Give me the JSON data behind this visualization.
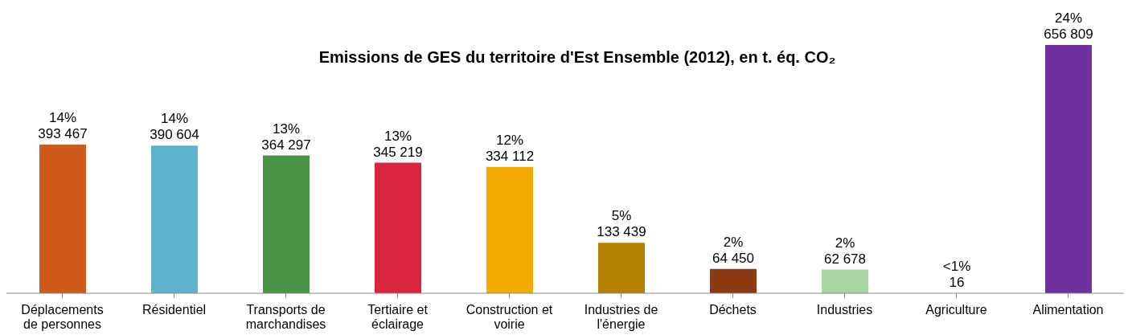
{
  "chart_data": {
    "type": "bar",
    "title": "Emissions de GES du territoire d'Est Ensemble (2012), en t. éq. CO₂",
    "categories": [
      "Déplacements\nde personnes",
      "Résidentiel",
      "Transports de\nmarchandises",
      "Tertiaire et\néclairage",
      "Construction et\nvoirie",
      "Industries de\nl'énergie",
      "Déchets",
      "Industries",
      "Agriculture",
      "Alimentation"
    ],
    "values": [
      393467,
      390604,
      364297,
      345219,
      334112,
      133439,
      64450,
      62678,
      16,
      656809
    ],
    "colors": [
      "#d05a1a",
      "#5eb3cc",
      "#4a9448",
      "#d9263e",
      "#f0aa00",
      "#b38200",
      "#8b3a12",
      "#a5d6a0",
      "#7fb3d5",
      "#7030a0"
    ],
    "value_labels": [
      "14%\n393 467",
      "14%\n390 604",
      "13%\n364 297",
      "13%\n345 219",
      "12%\n334 112",
      "5%\n133 439",
      "2%\n64 450",
      "2%\n62 678",
      "<1%\n16",
      "24%\n656 809"
    ],
    "ylim": [
      0,
      656809
    ]
  }
}
